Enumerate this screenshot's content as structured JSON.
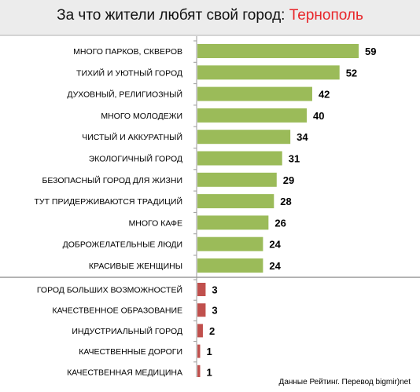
{
  "title": {
    "prefix": "За что жители любят свой город:",
    "city": "Тернополь"
  },
  "source": "Данные Рейтинг. Перевод bigmir)net",
  "colors": {
    "positive_bar": "#9bbb59",
    "negative_bar": "#c0504d",
    "city_text": "#e8262a",
    "title_bg": "#ececec"
  },
  "chart_data": {
    "type": "bar",
    "orientation": "horizontal",
    "grid": false,
    "groups": [
      {
        "color": "#9bbb59",
        "categories": [
          "МНОГО ПАРКОВ, СКВЕРОВ",
          "ТИХИЙ И УЮТНЫЙ ГОРОД",
          "ДУХОВНЫЙ, РЕЛИГИОЗНЫЙ",
          "МНОГО МОЛОДЕЖИ",
          "ЧИСТЫЙ И АККУРАТНЫЙ",
          "ЭКОЛОГИЧНЫЙ ГОРОД",
          "БЕЗОПАСНЫЙ ГОРОД ДЛЯ ЖИЗНИ",
          "ТУТ ПРИДЕРЖИВАЮТСЯ ТРАДИЦИЙ",
          "МНОГО КАФЕ",
          "ДОБРОЖЕЛАТЕЛЬНЫЕ ЛЮДИ",
          "КРАСИВЫЕ ЖЕНЩИНЫ"
        ],
        "values": [
          59,
          52,
          42,
          40,
          34,
          31,
          29,
          28,
          26,
          24,
          24
        ]
      },
      {
        "color": "#c0504d",
        "categories": [
          "ГОРОД БОЛЬШИХ ВОЗМОЖНОСТЕЙ",
          "КАЧЕСТВЕННОЕ ОБРАЗОВАНИЕ",
          "ИНДУСТРИАЛЬНЫЙ ГОРОД",
          "КАЧЕСТВЕННЫЕ ДОРОГИ",
          "КАЧЕСТВЕННАЯ МЕДИЦИНА"
        ],
        "values": [
          3,
          3,
          2,
          1,
          1
        ]
      }
    ],
    "xlim": [
      0,
      60
    ]
  }
}
